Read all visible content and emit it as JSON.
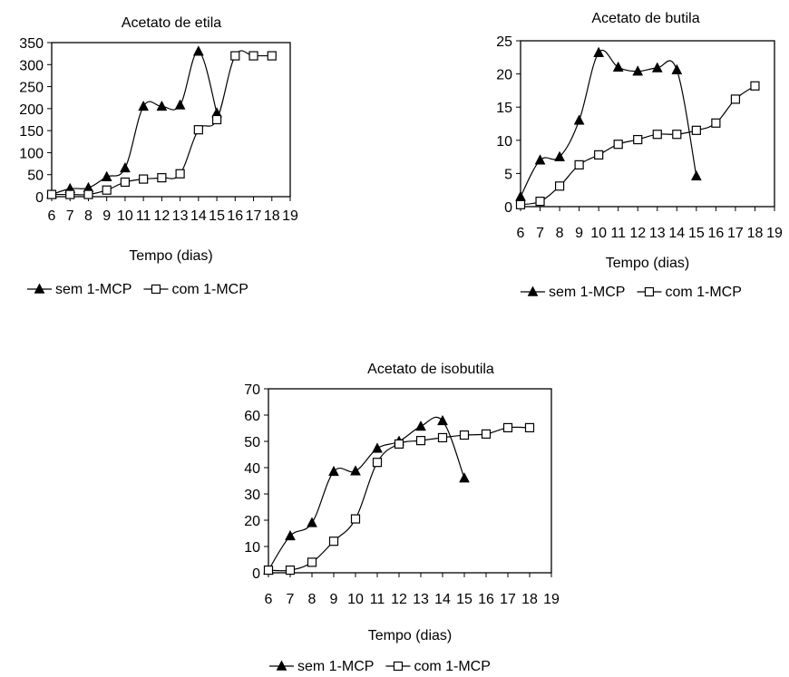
{
  "chart_data": [
    {
      "type": "line",
      "title": "Acetato de etila",
      "xlabel": "Tempo (dias)",
      "ylabel": "",
      "xlim": [
        6,
        19
      ],
      "ylim": [
        0,
        350
      ],
      "x_ticks": [
        "6",
        "7",
        "8",
        "9",
        "10",
        "11",
        "12",
        "13",
        "14",
        "15",
        "16",
        "17",
        "18",
        "19"
      ],
      "y_ticks": [
        "0",
        "50",
        "100",
        "150",
        "200",
        "250",
        "300",
        "350"
      ],
      "grid": false,
      "legend_position": "bottom",
      "series": [
        {
          "name": "sem 1-MCP",
          "marker": "triangle",
          "x": [
            6,
            7,
            8,
            9,
            10,
            11,
            12,
            13,
            14,
            15
          ],
          "y": [
            5,
            18,
            20,
            45,
            65,
            205,
            205,
            208,
            330,
            190
          ]
        },
        {
          "name": "com 1-MCP",
          "marker": "square",
          "x": [
            6,
            7,
            8,
            9,
            10,
            11,
            12,
            13,
            14,
            15,
            16,
            17,
            18
          ],
          "y": [
            5,
            5,
            5,
            15,
            33,
            40,
            43,
            52,
            152,
            175,
            320,
            320,
            320
          ]
        }
      ]
    },
    {
      "type": "line",
      "title": "Acetato de butila",
      "xlabel": "Tempo (dias)",
      "ylabel": "",
      "xlim": [
        6,
        19
      ],
      "ylim": [
        0,
        25
      ],
      "x_ticks": [
        "6",
        "7",
        "8",
        "9",
        "10",
        "11",
        "12",
        "13",
        "14",
        "15",
        "16",
        "17",
        "18",
        "19"
      ],
      "y_ticks": [
        "0",
        "5",
        "10",
        "15",
        "20",
        "25"
      ],
      "grid": false,
      "legend_position": "bottom",
      "series": [
        {
          "name": "sem 1-MCP",
          "marker": "triangle",
          "x": [
            6,
            7,
            8,
            9,
            10,
            11,
            12,
            13,
            14,
            15
          ],
          "y": [
            1.5,
            7,
            7.5,
            13,
            23.2,
            21,
            20.4,
            20.9,
            20.6,
            4.6
          ]
        },
        {
          "name": "com 1-MCP",
          "marker": "square",
          "x": [
            6,
            7,
            8,
            9,
            10,
            11,
            12,
            13,
            14,
            15,
            16,
            17,
            18
          ],
          "y": [
            0.3,
            0.8,
            3.1,
            6.3,
            7.8,
            9.4,
            10.1,
            10.9,
            10.9,
            11.5,
            12.6,
            16.2,
            18.2
          ]
        }
      ]
    },
    {
      "type": "line",
      "title": "Acetato de isobutila",
      "xlabel": "Tempo (dias)",
      "ylabel": "",
      "xlim": [
        6,
        19
      ],
      "ylim": [
        0,
        70
      ],
      "x_ticks": [
        "6",
        "7",
        "8",
        "9",
        "10",
        "11",
        "12",
        "13",
        "14",
        "15",
        "16",
        "17",
        "18",
        "19"
      ],
      "y_ticks": [
        "0",
        "10",
        "20",
        "30",
        "40",
        "50",
        "60",
        "70"
      ],
      "grid": false,
      "legend_position": "bottom",
      "series": [
        {
          "name": "sem 1-MCP",
          "marker": "triangle",
          "x": [
            6,
            7,
            8,
            9,
            10,
            11,
            12,
            13,
            14,
            15
          ],
          "y": [
            1,
            14,
            19,
            38.5,
            38.7,
            47.3,
            50,
            55.7,
            57.8,
            36
          ]
        },
        {
          "name": "com 1-MCP",
          "marker": "square",
          "x": [
            6,
            7,
            8,
            9,
            10,
            11,
            12,
            13,
            14,
            15,
            16,
            17,
            18
          ],
          "y": [
            1,
            1,
            4,
            12,
            20.5,
            42,
            49,
            50.3,
            51.4,
            52.4,
            52.8,
            55.2,
            55.2
          ]
        }
      ]
    }
  ]
}
